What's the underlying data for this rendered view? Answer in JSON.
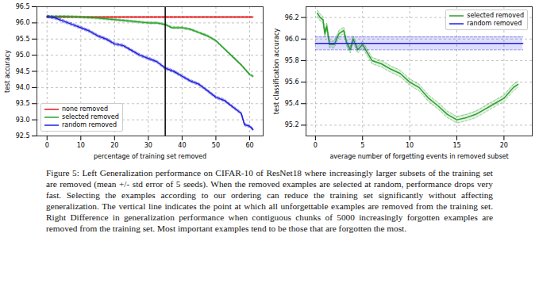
{
  "chart_data": [
    {
      "type": "line",
      "x_label": "percentage of training set removed",
      "y_label": "test accuracy",
      "xlim": [
        -3,
        64
      ],
      "xticks": [
        0,
        10,
        20,
        30,
        40,
        50,
        60
      ],
      "ylim": [
        92.5,
        96.5
      ],
      "yticks": [
        92.5,
        {
          "value": 93,
          "label": "93.0"
        },
        93.5,
        {
          "value": 94,
          "label": "94.0"
        },
        94.5,
        {
          "value": 95,
          "label": "95.0"
        },
        95.5,
        {
          "value": 96,
          "label": "96.0"
        },
        96.5
      ],
      "grid": true,
      "legend": "lower left",
      "vertical_line": 35,
      "series": [
        {
          "name": "none removed",
          "color": "#e41a1c",
          "x": [
            0,
            10,
            20,
            30,
            40,
            50,
            61
          ],
          "values": [
            96.18,
            96.18,
            96.18,
            96.18,
            96.18,
            96.18,
            96.18
          ],
          "error": [
            0.02,
            0.02,
            0.02,
            0.02,
            0.02,
            0.02,
            0.02
          ]
        },
        {
          "name": "selected removed",
          "color": "#2ca02c",
          "x": [
            0,
            5,
            10,
            15,
            20,
            25,
            30,
            32.5,
            35,
            37,
            40,
            42.5,
            45,
            47.5,
            50,
            52.5,
            55,
            57.5,
            60,
            61
          ],
          "values": [
            96.2,
            96.2,
            96.18,
            96.15,
            96.1,
            96.05,
            96.0,
            96.0,
            95.95,
            95.85,
            95.85,
            95.8,
            95.7,
            95.6,
            95.45,
            95.2,
            94.95,
            94.7,
            94.4,
            94.35
          ],
          "error": [
            0.03,
            0.03,
            0.03,
            0.03,
            0.03,
            0.03,
            0.03,
            0.03,
            0.03,
            0.03,
            0.03,
            0.03,
            0.03,
            0.03,
            0.03,
            0.03,
            0.03,
            0.03,
            0.03,
            0.03
          ]
        },
        {
          "name": "random removed",
          "color": "#1f1fe0",
          "x": [
            0,
            2.5,
            5,
            7.5,
            10,
            12.5,
            15,
            17.5,
            20,
            22.5,
            25,
            27.5,
            30,
            32.5,
            35,
            37.5,
            40,
            42.5,
            45,
            47.5,
            50,
            52.5,
            55,
            57.5,
            58.5,
            60,
            61
          ],
          "values": [
            96.2,
            96.15,
            96.05,
            95.95,
            95.85,
            95.75,
            95.6,
            95.5,
            95.35,
            95.3,
            95.15,
            95.0,
            94.9,
            94.8,
            94.6,
            94.5,
            94.35,
            94.2,
            94.1,
            93.9,
            93.7,
            93.6,
            93.4,
            93.2,
            92.85,
            92.8,
            92.7
          ],
          "error": [
            0.04,
            0.04,
            0.04,
            0.04,
            0.04,
            0.04,
            0.04,
            0.04,
            0.04,
            0.04,
            0.04,
            0.04,
            0.04,
            0.04,
            0.04,
            0.04,
            0.04,
            0.04,
            0.04,
            0.04,
            0.04,
            0.04,
            0.04,
            0.04,
            0.04,
            0.04,
            0.04
          ]
        }
      ]
    },
    {
      "type": "line",
      "x_label": "average number of forgetting events in removed subset",
      "y_label": "test classification accuracy",
      "xlim": [
        -1,
        23
      ],
      "xticks": [
        0,
        5,
        10,
        15,
        20
      ],
      "ylim": [
        95.1,
        96.3
      ],
      "yticks": [
        95.2,
        95.4,
        95.6,
        95.8,
        {
          "value": 96,
          "label": "96.0"
        },
        96.2
      ],
      "grid": true,
      "legend": "upper right",
      "series": [
        {
          "name": "selected removed",
          "color": "#2ca02c",
          "x": [
            0.2,
            0.5,
            0.8,
            1.0,
            1.2,
            1.5,
            2,
            2.5,
            3,
            3.3,
            3.7,
            4,
            4.5,
            5,
            6,
            7,
            8,
            9,
            10,
            11,
            12,
            13,
            14,
            15,
            16,
            17,
            18,
            19,
            20,
            21,
            21.5
          ],
          "values": [
            96.24,
            96.2,
            96.18,
            96.05,
            96.12,
            95.95,
            95.95,
            96.05,
            96.08,
            95.97,
            95.9,
            96.0,
            95.9,
            95.95,
            95.8,
            95.77,
            95.72,
            95.68,
            95.6,
            95.55,
            95.45,
            95.38,
            95.3,
            95.25,
            95.27,
            95.3,
            95.35,
            95.4,
            95.45,
            95.55,
            95.58
          ],
          "error": [
            0.03,
            0.03,
            0.03,
            0.03,
            0.03,
            0.03,
            0.03,
            0.03,
            0.03,
            0.03,
            0.03,
            0.03,
            0.03,
            0.03,
            0.03,
            0.03,
            0.03,
            0.03,
            0.03,
            0.03,
            0.03,
            0.03,
            0.03,
            0.03,
            0.03,
            0.03,
            0.03,
            0.03,
            0.03,
            0.03,
            0.03
          ]
        },
        {
          "name": "random removed",
          "color": "#1f1fe0",
          "x": [
            0,
            22
          ],
          "values": [
            95.96,
            95.96
          ],
          "error": [
            0.06,
            0.06
          ]
        }
      ]
    }
  ],
  "caption": "Figure 5: Left Generalization performance on CIFAR-10 of ResNet18 where increasingly larger subsets of the training set are removed (mean +/- std error of 5 seeds). When the removed examples are selected at random, performance drops very fast. Selecting the examples according to our ordering can reduce the training set significantly without affecting generalization. The vertical line indicates the point at which all unforgettable examples are removed from the training set. Right Difference in generalization performance when contiguous chunks of 5000 increasingly forgotten examples are removed from the training set. Most important examples tend to be those that are forgotten the most."
}
